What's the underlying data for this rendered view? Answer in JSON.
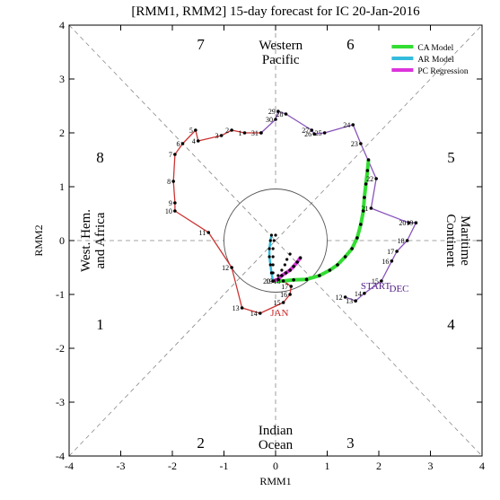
{
  "chart_data": {
    "type": "line",
    "title": "[RMM1, RMM2] 15-day forecast for IC 20-Jan-2016",
    "xlabel": "RMM1",
    "ylabel": "RMM2",
    "xlim": [
      -4,
      4
    ],
    "ylim": [
      -4,
      4
    ],
    "xticks": [
      "-4",
      "-3",
      "-2",
      "-1",
      "0",
      "1",
      "2",
      "3",
      "4"
    ],
    "yticks": [
      "-4",
      "-3",
      "-2",
      "-1",
      "0",
      "1",
      "2",
      "3",
      "4"
    ],
    "legend_position": "top-right",
    "phases": [
      {
        "label": "1",
        "x": -3.4,
        "y": -1.55
      },
      {
        "label": "2",
        "x": -1.45,
        "y": -3.75
      },
      {
        "label": "3",
        "x": 1.45,
        "y": -3.75
      },
      {
        "label": "4",
        "x": 3.4,
        "y": -1.55
      },
      {
        "label": "5",
        "x": 3.4,
        "y": 1.55
      },
      {
        "label": "6",
        "x": 1.45,
        "y": 3.65
      },
      {
        "label": "7",
        "x": -1.45,
        "y": 3.65
      },
      {
        "label": "8",
        "x": -3.4,
        "y": 1.55
      }
    ],
    "regions": [
      {
        "lines": [
          "Western",
          "Pacific"
        ],
        "x": 0.1,
        "y": 3.5,
        "rotate": 0
      },
      {
        "lines": [
          "Indian",
          "Ocean"
        ],
        "x": 0.0,
        "y": -3.65,
        "rotate": 0
      },
      {
        "lines": [
          "West. Hem.",
          "and Africa"
        ],
        "x": -3.55,
        "y": 0.0,
        "rotate": -90
      },
      {
        "lines": [
          "Maritime",
          "Continent"
        ],
        "x": 3.55,
        "y": 0.0,
        "rotate": 90
      }
    ],
    "month_labels": [
      {
        "text": "JAN",
        "x": -0.1,
        "y": -1.4,
        "color": "#cc2222"
      },
      {
        "text": "DEC",
        "x": 2.2,
        "y": -0.95,
        "color": "#552288"
      },
      {
        "text": "START",
        "x": 1.65,
        "y": -0.9,
        "color": "#552288"
      }
    ],
    "series": [
      {
        "name": "DEC",
        "color": "#8855bb",
        "points": [
          {
            "x": 1.35,
            "y": -1.05,
            "label": "12"
          },
          {
            "x": 1.55,
            "y": -1.12,
            "label": "13"
          },
          {
            "x": 1.72,
            "y": -0.98,
            "label": "14"
          },
          {
            "x": 2.05,
            "y": -0.75,
            "label": "15"
          },
          {
            "x": 2.25,
            "y": -0.38,
            "label": "16"
          },
          {
            "x": 2.35,
            "y": -0.2,
            "label": "17"
          },
          {
            "x": 2.55,
            "y": 0.0,
            "label": "18"
          },
          {
            "x": 2.72,
            "y": 0.33,
            "label": "19"
          },
          {
            "x": 2.58,
            "y": 0.33,
            "label": "20"
          },
          {
            "x": 1.85,
            "y": 0.6,
            "label": "21"
          },
          {
            "x": 1.95,
            "y": 1.15,
            "label": "22"
          },
          {
            "x": 1.65,
            "y": 1.8,
            "label": "23"
          },
          {
            "x": 1.5,
            "y": 2.15,
            "label": "24"
          },
          {
            "x": 0.95,
            "y": 2.0,
            "label": "25"
          },
          {
            "x": 0.75,
            "y": 1.98,
            "label": "26"
          },
          {
            "x": 0.7,
            "y": 2.05,
            "label": "27"
          },
          {
            "x": 0.2,
            "y": 2.35,
            "label": "28"
          },
          {
            "x": 0.05,
            "y": 2.4,
            "label": "29"
          },
          {
            "x": 0.0,
            "y": 2.25,
            "label": "30"
          },
          {
            "x": -0.28,
            "y": 2.0,
            "label": "31"
          }
        ]
      },
      {
        "name": "JAN",
        "color": "#cc3333",
        "points": [
          {
            "x": -0.28,
            "y": 2.0,
            "label": ""
          },
          {
            "x": -0.6,
            "y": 2.0,
            "label": "1"
          },
          {
            "x": -0.85,
            "y": 2.05,
            "label": "2"
          },
          {
            "x": -1.05,
            "y": 1.95,
            "label": "3"
          },
          {
            "x": -1.5,
            "y": 1.85,
            "label": "4"
          },
          {
            "x": -1.55,
            "y": 2.05,
            "label": "5"
          },
          {
            "x": -1.8,
            "y": 1.8,
            "label": "6"
          },
          {
            "x": -1.95,
            "y": 1.6,
            "label": "7"
          },
          {
            "x": -1.98,
            "y": 1.1,
            "label": "8"
          },
          {
            "x": -1.95,
            "y": 0.7,
            "label": "9"
          },
          {
            "x": -1.95,
            "y": 0.55,
            "label": "10"
          },
          {
            "x": -1.3,
            "y": 0.15,
            "label": "11"
          },
          {
            "x": -0.85,
            "y": -0.5,
            "label": "12"
          },
          {
            "x": -0.65,
            "y": -1.25,
            "label": "13"
          },
          {
            "x": -0.3,
            "y": -1.35,
            "label": "14"
          },
          {
            "x": 0.15,
            "y": -1.15,
            "label": "15"
          },
          {
            "x": 0.28,
            "y": -1.0,
            "label": "16"
          },
          {
            "x": 0.3,
            "y": -0.85,
            "label": "17"
          },
          {
            "x": 0.15,
            "y": -0.75,
            "label": "18"
          },
          {
            "x": 0.0,
            "y": -0.75,
            "label": "19"
          },
          {
            "x": -0.05,
            "y": -0.75,
            "label": "20"
          }
        ]
      },
      {
        "name": "CA Model",
        "color": "#33dd33",
        "points": [
          {
            "x": -0.05,
            "y": -0.75
          },
          {
            "x": 0.15,
            "y": -0.75
          },
          {
            "x": 0.35,
            "y": -0.73
          },
          {
            "x": 0.6,
            "y": -0.72
          },
          {
            "x": 0.85,
            "y": -0.65
          },
          {
            "x": 1.05,
            "y": -0.55
          },
          {
            "x": 1.2,
            "y": -0.45
          },
          {
            "x": 1.35,
            "y": -0.3
          },
          {
            "x": 1.48,
            "y": -0.15
          },
          {
            "x": 1.58,
            "y": 0.05
          },
          {
            "x": 1.65,
            "y": 0.3
          },
          {
            "x": 1.7,
            "y": 0.55
          },
          {
            "x": 1.72,
            "y": 0.8
          },
          {
            "x": 1.75,
            "y": 1.05
          },
          {
            "x": 1.78,
            "y": 1.3
          },
          {
            "x": 1.8,
            "y": 1.5
          }
        ]
      },
      {
        "name": "AR Model",
        "color": "#33bbdd",
        "points": [
          {
            "x": -0.05,
            "y": -0.75
          },
          {
            "x": -0.08,
            "y": -0.6
          },
          {
            "x": -0.1,
            "y": -0.45
          },
          {
            "x": -0.12,
            "y": -0.3
          },
          {
            "x": -0.12,
            "y": -0.15
          },
          {
            "x": -0.1,
            "y": 0.0
          },
          {
            "x": -0.08,
            "y": 0.1
          }
        ]
      },
      {
        "name": "PC Regression",
        "color": "#dd33dd",
        "points": [
          {
            "x": -0.05,
            "y": -0.75
          },
          {
            "x": 0.05,
            "y": -0.72
          },
          {
            "x": 0.12,
            "y": -0.65
          },
          {
            "x": 0.2,
            "y": -0.6
          },
          {
            "x": 0.28,
            "y": -0.55
          },
          {
            "x": 0.35,
            "y": -0.48
          },
          {
            "x": 0.42,
            "y": -0.4
          },
          {
            "x": 0.48,
            "y": -0.32
          }
        ]
      }
    ],
    "ensemble_line": [
      {
        "x": -0.05,
        "y": -0.75
      },
      {
        "x": -0.05,
        "y": -0.6
      },
      {
        "x": -0.05,
        "y": -0.45
      },
      {
        "x": -0.05,
        "y": -0.3
      },
      {
        "x": -0.05,
        "y": -0.15
      },
      {
        "x": -0.03,
        "y": 0.0
      },
      {
        "x": 0.0,
        "y": 0.1
      }
    ],
    "ensemble_line2": [
      {
        "x": -0.05,
        "y": -0.75
      },
      {
        "x": 0.05,
        "y": -0.65
      },
      {
        "x": 0.12,
        "y": -0.55
      },
      {
        "x": 0.18,
        "y": -0.45
      },
      {
        "x": 0.22,
        "y": -0.35
      },
      {
        "x": 0.28,
        "y": -0.25
      }
    ]
  }
}
